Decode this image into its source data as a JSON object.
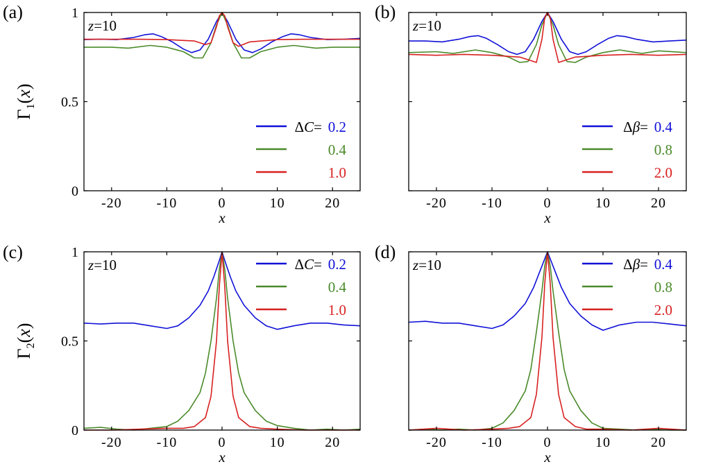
{
  "chart_data": [
    {
      "type": "line",
      "panel_label": "(a)",
      "annotation": "z=10",
      "ylabel": "Γ1(x)",
      "xlabel": "x",
      "xlim": [
        -25,
        25
      ],
      "ylim": [
        0,
        1
      ],
      "xticks": [
        -20,
        -10,
        0,
        10,
        20
      ],
      "yticks": [
        0,
        0.5,
        1
      ],
      "xtick_labels": [
        "-20",
        "-10",
        "0",
        "10",
        "20"
      ],
      "ytick_labels": [
        "0",
        "0.5",
        "1"
      ],
      "legend_param": "ΔC",
      "legend_position": "bottom-right",
      "series": [
        {
          "name": "0.2",
          "color": "#1010d8",
          "x": [
            -25,
            -22,
            -19,
            -16,
            -14,
            -12.5,
            -11,
            -9,
            -7,
            -5.5,
            -4,
            -2.5,
            -1,
            0,
            1,
            2.5,
            4,
            5.5,
            7,
            9,
            11,
            12.5,
            14,
            16,
            19,
            22,
            25
          ],
          "y": [
            0.848,
            0.85,
            0.848,
            0.86,
            0.875,
            0.88,
            0.865,
            0.835,
            0.795,
            0.775,
            0.79,
            0.85,
            0.95,
            1.0,
            0.95,
            0.85,
            0.79,
            0.775,
            0.795,
            0.835,
            0.865,
            0.88,
            0.875,
            0.86,
            0.848,
            0.85,
            0.855
          ]
        },
        {
          "name": "0.4",
          "color": "#4a8a2a",
          "x": [
            -25,
            -20,
            -17,
            -13,
            -10,
            -7,
            -5,
            -3.5,
            -2,
            -1,
            0,
            1,
            2,
            3.5,
            5,
            7,
            10,
            13,
            17,
            20,
            25
          ],
          "y": [
            0.805,
            0.805,
            0.8,
            0.815,
            0.805,
            0.78,
            0.745,
            0.745,
            0.83,
            0.93,
            1.0,
            0.93,
            0.83,
            0.745,
            0.745,
            0.78,
            0.805,
            0.815,
            0.8,
            0.805,
            0.805
          ]
        },
        {
          "name": "1.0",
          "color": "#d82020",
          "x": [
            -25,
            -20,
            -15,
            -10,
            -5,
            -3,
            -2,
            -1,
            -0.5,
            0,
            0.5,
            1,
            2,
            3,
            5,
            10,
            15,
            20,
            25
          ],
          "y": [
            0.85,
            0.85,
            0.85,
            0.848,
            0.84,
            0.82,
            0.83,
            0.92,
            0.98,
            1.0,
            0.98,
            0.92,
            0.83,
            0.81,
            0.835,
            0.848,
            0.85,
            0.85,
            0.85
          ]
        }
      ]
    },
    {
      "type": "line",
      "panel_label": "(b)",
      "annotation": "z=10",
      "ylabel": "",
      "xlabel": "x",
      "xlim": [
        -25,
        25
      ],
      "ylim": [
        0,
        1
      ],
      "xticks": [
        -20,
        -10,
        0,
        10,
        20
      ],
      "yticks": [
        0,
        0.5,
        1
      ],
      "xtick_labels": [
        "-20",
        "-10",
        "0",
        "10",
        "20"
      ],
      "ytick_labels": [],
      "legend_param": "Δβ",
      "legend_position": "bottom-right",
      "series": [
        {
          "name": "0.4",
          "color": "#1010d8",
          "x": [
            -25,
            -22,
            -19,
            -16,
            -14,
            -12.5,
            -11,
            -9,
            -7,
            -5.5,
            -4,
            -2.5,
            -1,
            0,
            1,
            2.5,
            4,
            5.5,
            7,
            9,
            11,
            12.5,
            14,
            16,
            19,
            22,
            25
          ],
          "y": [
            0.84,
            0.84,
            0.835,
            0.85,
            0.865,
            0.87,
            0.855,
            0.82,
            0.78,
            0.765,
            0.78,
            0.85,
            0.95,
            1.0,
            0.95,
            0.85,
            0.78,
            0.765,
            0.78,
            0.82,
            0.855,
            0.87,
            0.865,
            0.85,
            0.835,
            0.84,
            0.845
          ]
        },
        {
          "name": "0.8",
          "color": "#4a8a2a",
          "x": [
            -25,
            -20,
            -17,
            -13,
            -10,
            -7,
            -5,
            -3.5,
            -2,
            -1,
            0,
            1,
            2,
            3.5,
            5,
            7,
            10,
            13,
            17,
            20,
            25
          ],
          "y": [
            0.775,
            0.78,
            0.77,
            0.79,
            0.775,
            0.75,
            0.72,
            0.725,
            0.82,
            0.93,
            1.0,
            0.93,
            0.82,
            0.725,
            0.72,
            0.75,
            0.775,
            0.79,
            0.77,
            0.785,
            0.775
          ]
        },
        {
          "name": "2.0",
          "color": "#d82020",
          "x": [
            -25,
            -20,
            -15,
            -10,
            -5,
            -3,
            -2,
            -1,
            -0.5,
            0,
            0.5,
            1,
            2,
            3,
            5,
            10,
            15,
            20,
            25
          ],
          "y": [
            0.765,
            0.76,
            0.765,
            0.76,
            0.75,
            0.73,
            0.72,
            0.85,
            0.97,
            1.0,
            0.97,
            0.85,
            0.72,
            0.73,
            0.75,
            0.76,
            0.765,
            0.76,
            0.765
          ]
        }
      ]
    },
    {
      "type": "line",
      "panel_label": "(c)",
      "annotation": "z=10",
      "ylabel": "Γ2(x)",
      "xlabel": "x",
      "xlim": [
        -25,
        25
      ],
      "ylim": [
        0,
        1
      ],
      "xticks": [
        -20,
        -10,
        0,
        10,
        20
      ],
      "yticks": [
        0,
        0.5,
        1
      ],
      "xtick_labels": [
        "-20",
        "-10",
        "0",
        "10",
        "20"
      ],
      "ytick_labels": [
        "0",
        "0.5",
        "1"
      ],
      "legend_param": "ΔC",
      "legend_position": "top-right",
      "series": [
        {
          "name": "0.2",
          "color": "#1010d8",
          "x": [
            -25,
            -22,
            -19,
            -16,
            -13,
            -10,
            -8,
            -6,
            -4,
            -2.5,
            -1.5,
            -0.5,
            0,
            0.5,
            1.5,
            2.5,
            4,
            6,
            8,
            10,
            13,
            16,
            19,
            22,
            25
          ],
          "y": [
            0.6,
            0.595,
            0.6,
            0.6,
            0.585,
            0.57,
            0.585,
            0.63,
            0.7,
            0.78,
            0.86,
            0.95,
            1.0,
            0.95,
            0.86,
            0.78,
            0.7,
            0.63,
            0.585,
            0.565,
            0.585,
            0.6,
            0.6,
            0.59,
            0.585
          ]
        },
        {
          "name": "0.4",
          "color": "#4a8a2a",
          "x": [
            -25,
            -22,
            -19,
            -16,
            -13,
            -10,
            -8,
            -6,
            -4,
            -3,
            -2,
            -1,
            -0.5,
            0,
            0.5,
            1,
            2,
            3,
            4,
            6,
            8,
            10,
            13,
            16,
            19,
            22,
            25
          ],
          "y": [
            0.01,
            0.015,
            0.005,
            0.0,
            0.01,
            0.02,
            0.05,
            0.11,
            0.21,
            0.32,
            0.5,
            0.74,
            0.9,
            1.0,
            0.9,
            0.74,
            0.5,
            0.32,
            0.21,
            0.11,
            0.05,
            0.025,
            0.01,
            0.0,
            0.005,
            0.0,
            0.005
          ]
        },
        {
          "name": "1.0",
          "color": "#d82020",
          "x": [
            -25,
            -20,
            -15,
            -10,
            -7,
            -5,
            -3,
            -2,
            -1,
            -0.5,
            0,
            0.5,
            1,
            2,
            3,
            5,
            7,
            10,
            15,
            20,
            25
          ],
          "y": [
            0.0,
            0.0,
            0.005,
            0.01,
            0.01,
            0.02,
            0.07,
            0.19,
            0.5,
            0.8,
            1.0,
            0.8,
            0.5,
            0.19,
            0.07,
            0.02,
            0.01,
            0.005,
            0.0,
            0.0,
            0.0
          ]
        }
      ]
    },
    {
      "type": "line",
      "panel_label": "(d)",
      "annotation": "z=10",
      "ylabel": "",
      "xlabel": "x",
      "xlim": [
        -25,
        25
      ],
      "ylim": [
        0,
        1
      ],
      "xticks": [
        -20,
        -10,
        0,
        10,
        20
      ],
      "yticks": [
        0,
        0.5,
        1
      ],
      "xtick_labels": [
        "-20",
        "-10",
        "0",
        "10",
        "20"
      ],
      "ytick_labels": [],
      "legend_param": "Δβ",
      "legend_position": "top-right",
      "series": [
        {
          "name": "0.4",
          "color": "#1010d8",
          "x": [
            -25,
            -22,
            -19,
            -16,
            -13,
            -10,
            -8,
            -6,
            -4,
            -2.5,
            -1.5,
            -0.5,
            0,
            0.5,
            1.5,
            2.5,
            4,
            6,
            8,
            10,
            13,
            16,
            19,
            22,
            25
          ],
          "y": [
            0.605,
            0.61,
            0.6,
            0.6,
            0.585,
            0.57,
            0.59,
            0.64,
            0.71,
            0.8,
            0.88,
            0.96,
            1.0,
            0.96,
            0.88,
            0.8,
            0.71,
            0.64,
            0.59,
            0.56,
            0.59,
            0.605,
            0.605,
            0.595,
            0.585
          ]
        },
        {
          "name": "0.8",
          "color": "#4a8a2a",
          "x": [
            -25,
            -22,
            -19,
            -16,
            -13,
            -10,
            -8,
            -6,
            -4,
            -3,
            -2,
            -1,
            -0.5,
            0,
            0.5,
            1,
            2,
            3,
            4,
            6,
            8,
            10,
            13,
            16,
            19,
            22,
            25
          ],
          "y": [
            0.0,
            0.005,
            0.0,
            0.005,
            0.0,
            0.01,
            0.04,
            0.11,
            0.22,
            0.34,
            0.55,
            0.78,
            0.92,
            1.0,
            0.92,
            0.78,
            0.55,
            0.34,
            0.22,
            0.11,
            0.04,
            0.01,
            0.005,
            0.0,
            0.005,
            0.0,
            0.0
          ]
        },
        {
          "name": "2.0",
          "color": "#d82020",
          "x": [
            -25,
            -20,
            -15,
            -10,
            -7,
            -5,
            -3,
            -2,
            -1,
            -0.5,
            0,
            0.5,
            1,
            2,
            3,
            5,
            7,
            10,
            15,
            20,
            25
          ],
          "y": [
            0.0,
            0.01,
            0.0,
            0.005,
            0.01,
            0.02,
            0.07,
            0.2,
            0.52,
            0.82,
            1.0,
            0.82,
            0.52,
            0.2,
            0.07,
            0.02,
            0.005,
            0.005,
            0.0,
            0.01,
            0.0
          ]
        }
      ]
    }
  ]
}
